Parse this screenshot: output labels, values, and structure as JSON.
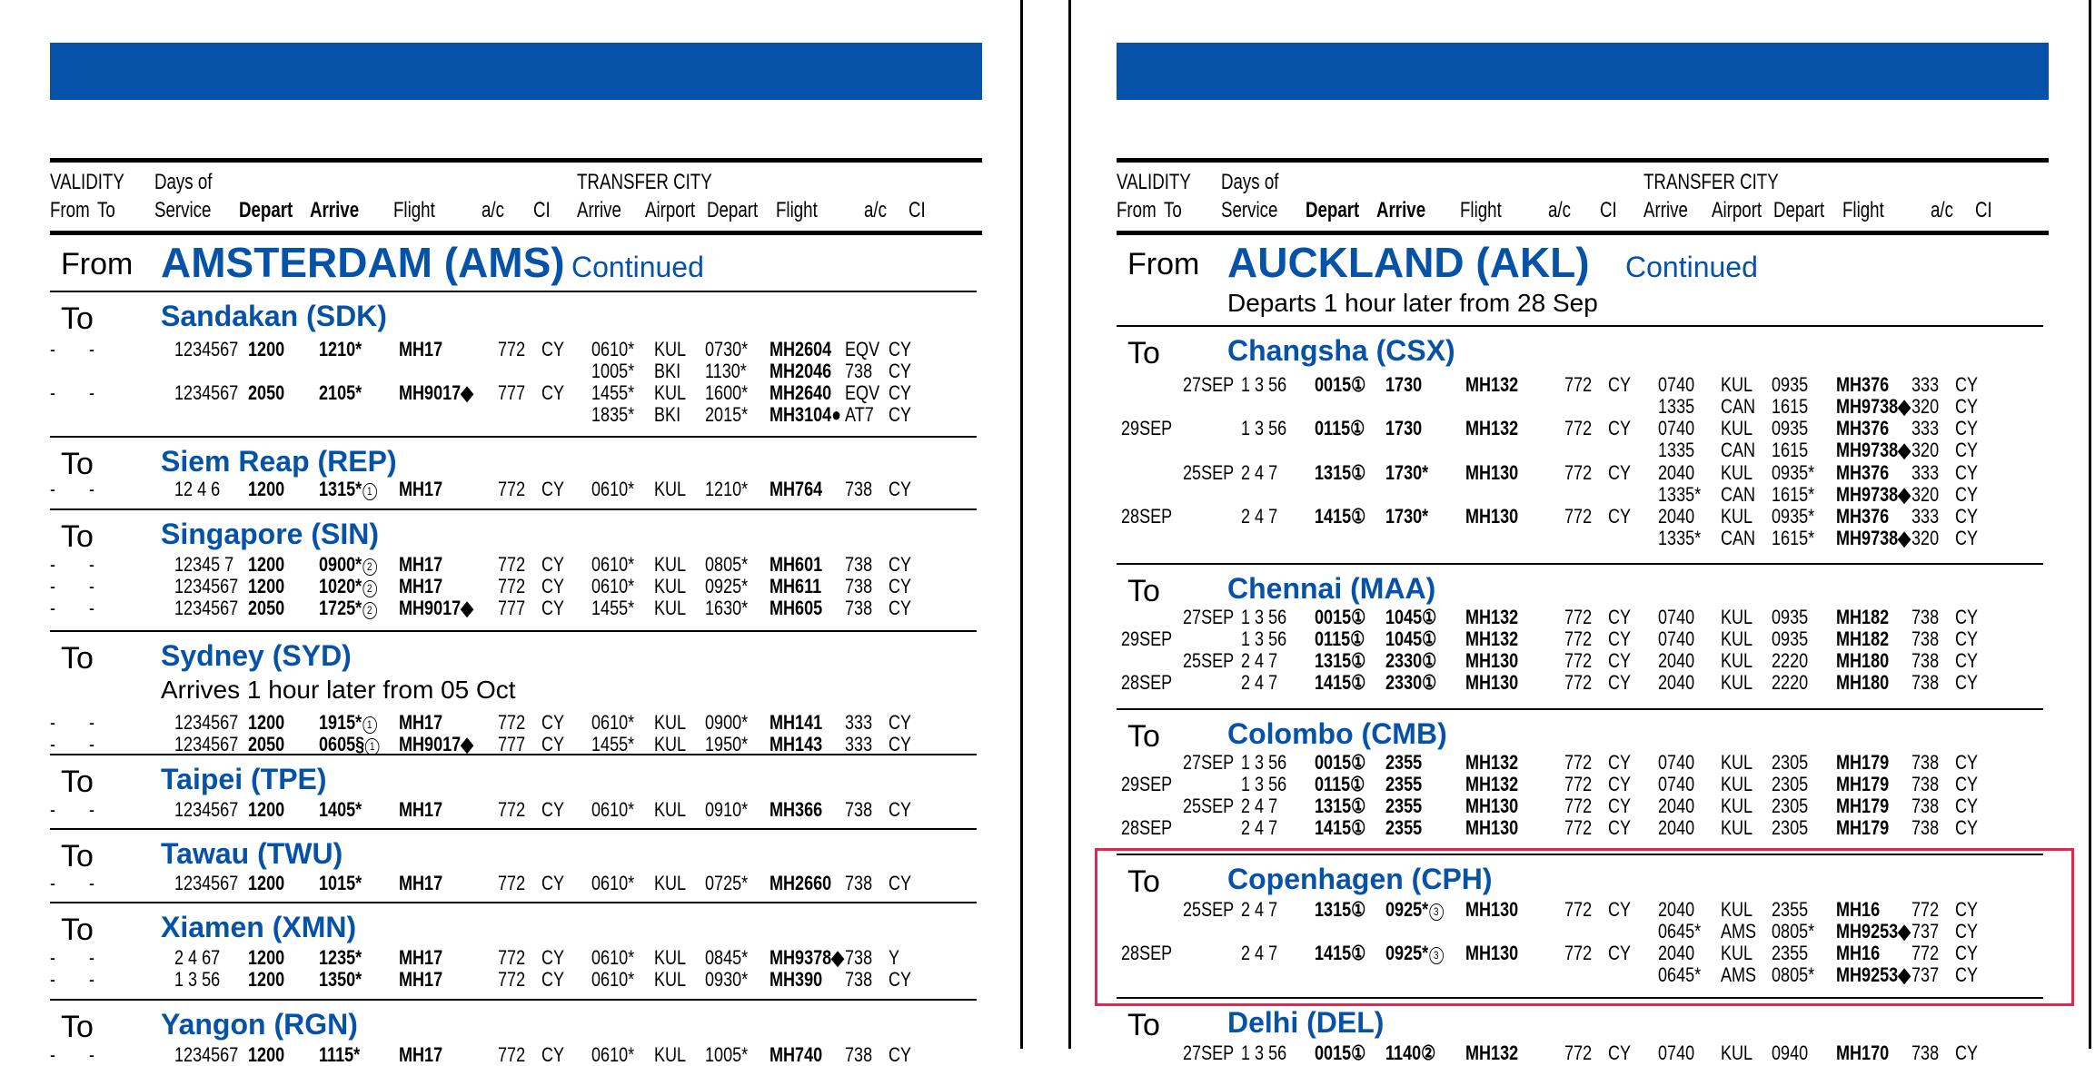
{
  "header": {
    "validity": "VALIDITY",
    "from": "From",
    "to": "To",
    "days_of": "Days of",
    "service": "Service",
    "depart": "Depart",
    "arrive": "Arrive",
    "flight": "Flight",
    "ac": "a/c",
    "ci": "CI",
    "transfer_city": "TRANSFER CITY",
    "t_arrive": "Arrive",
    "t_airport": "Airport",
    "t_depart": "Depart",
    "t_flight": "Flight",
    "t_ac": "a/c",
    "t_ci": "CI"
  },
  "left": {
    "from_label": "From",
    "city": "AMSTERDAM (AMS)",
    "continued": "Continued",
    "to_label": "To",
    "sections": [
      {
        "dest": "Sandakan (SDK)",
        "rows": [
          [
            "-",
            "-",
            "",
            "1234567",
            "1200",
            "1210*",
            "",
            "MH17",
            "772",
            "CY",
            "0610*",
            "KUL",
            "0730*",
            "MH2604",
            "EQV",
            "CY"
          ],
          [
            "",
            "",
            "",
            "",
            "",
            "",
            "",
            "",
            "",
            "",
            "1005*",
            "BKI",
            "1130*",
            "MH2046",
            "738",
            "CY"
          ],
          [
            "-",
            "-",
            "",
            "1234567",
            "2050",
            "2105*",
            "",
            "MH9017◆",
            "777",
            "CY",
            "1455*",
            "KUL",
            "1600*",
            "MH2640",
            "EQV",
            "CY"
          ],
          [
            "",
            "",
            "",
            "",
            "",
            "",
            "",
            "",
            "",
            "",
            "1835*",
            "BKI",
            "2015*",
            "MH3104●",
            "AT7",
            "CY"
          ]
        ]
      },
      {
        "dest": "Siem Reap (REP)",
        "rows": [
          [
            "-",
            "-",
            "",
            "12 4 6",
            "1200",
            "1315*",
            "1",
            "MH17",
            "772",
            "CY",
            "0610*",
            "KUL",
            "1210*",
            "MH764",
            "738",
            "CY"
          ]
        ]
      },
      {
        "dest": "Singapore (SIN)",
        "rows": [
          [
            "-",
            "-",
            "",
            "12345 7",
            "1200",
            "0900*",
            "2",
            "MH17",
            "772",
            "CY",
            "0610*",
            "KUL",
            "0805*",
            "MH601",
            "738",
            "CY"
          ],
          [
            "-",
            "-",
            "",
            "1234567",
            "1200",
            "1020*",
            "2",
            "MH17",
            "772",
            "CY",
            "0610*",
            "KUL",
            "0925*",
            "MH611",
            "738",
            "CY"
          ],
          [
            "-",
            "-",
            "",
            "1234567",
            "2050",
            "1725*",
            "2",
            "MH9017◆",
            "777",
            "CY",
            "1455*",
            "KUL",
            "1630*",
            "MH605",
            "738",
            "CY"
          ]
        ]
      },
      {
        "dest": "Sydney (SYD)",
        "note": "Arrives 1 hour later from 05 Oct",
        "rows": [
          [
            "-",
            "-",
            "",
            "1234567",
            "1200",
            "1915*",
            "1",
            "MH17",
            "772",
            "CY",
            "0610*",
            "KUL",
            "0900*",
            "MH141",
            "333",
            "CY"
          ],
          [
            "-",
            "-",
            "",
            "1234567",
            "2050",
            "0605§",
            "1",
            "MH9017◆",
            "777",
            "CY",
            "1455*",
            "KUL",
            "1950*",
            "MH143",
            "333",
            "CY"
          ]
        ]
      },
      {
        "dest": "Taipei (TPE)",
        "rows": [
          [
            "-",
            "-",
            "",
            "1234567",
            "1200",
            "1405*",
            "",
            "MH17",
            "772",
            "CY",
            "0610*",
            "KUL",
            "0910*",
            "MH366",
            "738",
            "CY"
          ]
        ]
      },
      {
        "dest": "Tawau (TWU)",
        "rows": [
          [
            "-",
            "-",
            "",
            "1234567",
            "1200",
            "1015*",
            "",
            "MH17",
            "772",
            "CY",
            "0610*",
            "KUL",
            "0725*",
            "MH2660",
            "738",
            "CY"
          ]
        ]
      },
      {
        "dest": "Xiamen (XMN)",
        "rows": [
          [
            "-",
            "-",
            "",
            "2 4 67",
            "1200",
            "1235*",
            "",
            "MH17",
            "772",
            "CY",
            "0610*",
            "KUL",
            "0845*",
            "MH9378◆",
            "738",
            "Y"
          ],
          [
            "-",
            "-",
            "",
            "1 3 56",
            "1200",
            "1350*",
            "",
            "MH17",
            "772",
            "CY",
            "0610*",
            "KUL",
            "0930*",
            "MH390",
            "738",
            "CY"
          ]
        ]
      },
      {
        "dest": "Yangon (RGN)",
        "rows": [
          [
            "-",
            "-",
            "",
            "1234567",
            "1200",
            "1115*",
            "",
            "MH17",
            "772",
            "CY",
            "0610*",
            "KUL",
            "1005*",
            "MH740",
            "738",
            "CY"
          ]
        ]
      }
    ]
  },
  "right": {
    "from_label": "From",
    "city": "AUCKLAND (AKL)",
    "continued": "Continued",
    "city_note": "Departs 1 hour later from 28 Sep",
    "to_label": "To",
    "sections": [
      {
        "dest": "Changsha (CSX)",
        "rows": [
          [
            "",
            "27SEP",
            "",
            "1 3 56",
            "0015①",
            "1730",
            "",
            "MH132",
            "772",
            "CY",
            "0740",
            "KUL",
            "0935",
            "MH376",
            "333",
            "CY"
          ],
          [
            "",
            "",
            "",
            "",
            "",
            "",
            "",
            "",
            "",
            "",
            "1335",
            "CAN",
            "1615",
            "MH9738◆",
            "320",
            "CY"
          ],
          [
            "29SEP",
            "",
            "",
            "1 3 56",
            "0115①",
            "1730",
            "",
            "MH132",
            "772",
            "CY",
            "0740",
            "KUL",
            "0935",
            "MH376",
            "333",
            "CY"
          ],
          [
            "",
            "",
            "",
            "",
            "",
            "",
            "",
            "",
            "",
            "",
            "1335",
            "CAN",
            "1615",
            "MH9738◆",
            "320",
            "CY"
          ],
          [
            "",
            "25SEP",
            "",
            "2 4 7",
            "1315①",
            "1730*",
            "",
            "MH130",
            "772",
            "CY",
            "2040",
            "KUL",
            "0935*",
            "MH376",
            "333",
            "CY"
          ],
          [
            "",
            "",
            "",
            "",
            "",
            "",
            "",
            "",
            "",
            "",
            "1335*",
            "CAN",
            "1615*",
            "MH9738◆",
            "320",
            "CY"
          ],
          [
            "28SEP",
            "",
            "",
            "2 4 7",
            "1415①",
            "1730*",
            "",
            "MH130",
            "772",
            "CY",
            "2040",
            "KUL",
            "0935*",
            "MH376",
            "333",
            "CY"
          ],
          [
            "",
            "",
            "",
            "",
            "",
            "",
            "",
            "",
            "",
            "",
            "1335*",
            "CAN",
            "1615*",
            "MH9738◆",
            "320",
            "CY"
          ]
        ]
      },
      {
        "dest": "Chennai (MAA)",
        "rows": [
          [
            "",
            "27SEP",
            "",
            "1 3 56",
            "0015①",
            "1045①",
            "",
            "MH132",
            "772",
            "CY",
            "0740",
            "KUL",
            "0935",
            "MH182",
            "738",
            "CY"
          ],
          [
            "29SEP",
            "",
            "",
            "1 3 56",
            "0115①",
            "1045①",
            "",
            "MH132",
            "772",
            "CY",
            "0740",
            "KUL",
            "0935",
            "MH182",
            "738",
            "CY"
          ],
          [
            "",
            "25SEP",
            "",
            "2 4 7",
            "1315①",
            "2330①",
            "",
            "MH130",
            "772",
            "CY",
            "2040",
            "KUL",
            "2220",
            "MH180",
            "738",
            "CY"
          ],
          [
            "28SEP",
            "",
            "",
            "2 4 7",
            "1415①",
            "2330①",
            "",
            "MH130",
            "772",
            "CY",
            "2040",
            "KUL",
            "2220",
            "MH180",
            "738",
            "CY"
          ]
        ]
      },
      {
        "dest": "Colombo (CMB)",
        "rows": [
          [
            "",
            "27SEP",
            "",
            "1 3 56",
            "0015①",
            "2355",
            "",
            "MH132",
            "772",
            "CY",
            "0740",
            "KUL",
            "2305",
            "MH179",
            "738",
            "CY"
          ],
          [
            "29SEP",
            "",
            "",
            "1 3 56",
            "0115①",
            "2355",
            "",
            "MH132",
            "772",
            "CY",
            "0740",
            "KUL",
            "2305",
            "MH179",
            "738",
            "CY"
          ],
          [
            "",
            "25SEP",
            "",
            "2 4 7",
            "1315①",
            "2355",
            "",
            "MH130",
            "772",
            "CY",
            "2040",
            "KUL",
            "2305",
            "MH179",
            "738",
            "CY"
          ],
          [
            "28SEP",
            "",
            "",
            "2 4 7",
            "1415①",
            "2355",
            "",
            "MH130",
            "772",
            "CY",
            "2040",
            "KUL",
            "2305",
            "MH179",
            "738",
            "CY"
          ]
        ]
      },
      {
        "dest": "Copenhagen (CPH)",
        "rows": [
          [
            "",
            "25SEP",
            "",
            "2 4 7",
            "1315①",
            "0925*",
            "3",
            "MH130",
            "772",
            "CY",
            "2040",
            "KUL",
            "2355",
            "MH16",
            "772",
            "CY"
          ],
          [
            "",
            "",
            "",
            "",
            "",
            "",
            "",
            "",
            "",
            "",
            "0645*",
            "AMS",
            "0805*",
            "MH9253◆",
            "737",
            "CY"
          ],
          [
            "28SEP",
            "",
            "",
            "2 4 7",
            "1415①",
            "0925*",
            "3",
            "MH130",
            "772",
            "CY",
            "2040",
            "KUL",
            "2355",
            "MH16",
            "772",
            "CY"
          ],
          [
            "",
            "",
            "",
            "",
            "",
            "",
            "",
            "",
            "",
            "",
            "0645*",
            "AMS",
            "0805*",
            "MH9253◆",
            "737",
            "CY"
          ]
        ]
      },
      {
        "dest": "Delhi (DEL)",
        "rows": [
          [
            "",
            "27SEP",
            "",
            "1 3 56",
            "0015①",
            "1140②",
            "",
            "MH132",
            "772",
            "CY",
            "0740",
            "KUL",
            "0940",
            "MH170",
            "738",
            "CY"
          ]
        ]
      }
    ]
  },
  "colors": {
    "banner": "#0552a8",
    "city_blue": "#0552a8",
    "highlight": "#e0284c"
  }
}
